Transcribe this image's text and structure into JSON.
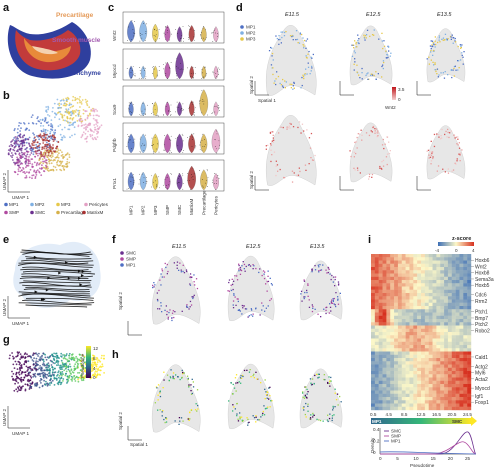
{
  "panels": {
    "a": {
      "letter": "a",
      "labels": {
        "precartilage": "Precartilage",
        "smooth_muscle": "Smooth muscle",
        "mesenchyme": "Mesenchyme"
      }
    },
    "b": {
      "letter": "b",
      "xlabel": "UMAP 1",
      "ylabel": "UMAP 2",
      "legend": [
        {
          "name": "MP1",
          "color": "#4e6fc4"
        },
        {
          "name": "MP2",
          "color": "#7fb0e3"
        },
        {
          "name": "MP3",
          "color": "#e6c84a"
        },
        {
          "name": "Pericytes",
          "color": "#e3a0c4"
        },
        {
          "name": "SMP",
          "color": "#b04aa0"
        },
        {
          "name": "SMC",
          "color": "#6b2f8f"
        },
        {
          "name": "Precartilage",
          "color": "#d6b14a"
        },
        {
          "name": "MatrixM",
          "color": "#a83232"
        }
      ]
    },
    "c": {
      "letter": "c",
      "genes": [
        "Wnt2",
        "Myocd",
        "Sox9",
        "Pdgfrb",
        "Prrx1"
      ],
      "categories": [
        "MP1",
        "MP2",
        "MP3",
        "SMP",
        "SMC",
        "MatrixM",
        "Precartilage",
        "Pericytes"
      ],
      "colors": [
        "#4e6fc4",
        "#7fb0e3",
        "#e6c84a",
        "#b04aa0",
        "#6b2f8f",
        "#a83232",
        "#d6b14a",
        "#e3a0c4"
      ]
    },
    "d": {
      "letter": "d",
      "stages": [
        "E11.5",
        "E12.5",
        "E13.5"
      ],
      "legend": [
        {
          "name": "MP1",
          "color": "#4e6fc4"
        },
        {
          "name": "MP2",
          "color": "#7fb0e3"
        },
        {
          "name": "MP3",
          "color": "#e6c84a"
        }
      ],
      "colorbar": {
        "gene": "Wnt2",
        "max": "3.5",
        "min": "0"
      },
      "xlabel": "Spatial 1",
      "ylabel": "Spatial 2"
    },
    "e": {
      "letter": "e",
      "xlabel": "UMAP 1",
      "ylabel": "UMAP 2"
    },
    "f": {
      "letter": "f",
      "stages": [
        "E11.5",
        "E12.5",
        "E13.5"
      ],
      "legend": [
        {
          "name": "SMC",
          "color": "#6b2f8f"
        },
        {
          "name": "SMP",
          "color": "#b04aa0"
        },
        {
          "name": "MP1",
          "color": "#4e6fc4"
        }
      ],
      "ylabel": "Spatial 2"
    },
    "g": {
      "letter": "g",
      "xlabel": "UMAP 1",
      "ylabel": "UMAP 2",
      "colorbar": {
        "title": "Pseudotime",
        "ticks": [
          "12",
          "8",
          "4",
          "0"
        ]
      }
    },
    "h": {
      "letter": "h",
      "xlabel": "Spatial 1",
      "ylabel": "Spatial 2"
    },
    "i": {
      "letter": "i",
      "zscore": {
        "title": "z-score",
        "ticks": [
          "-4",
          "0",
          "4"
        ]
      },
      "genes": [
        "Hoxb6",
        "Wnt2",
        "Hoxb8",
        "Sema3a",
        "Hoxb5",
        "Cdc6",
        "Rrm2",
        "Ptch1",
        "Bmp7",
        "Ptch2",
        "Robo2",
        "Cald1",
        "Actg2",
        "Myl6",
        "Acta2",
        "Myocd",
        "Igf1",
        "Foxp1"
      ],
      "pt_ticks": [
        "0.5",
        "4.5",
        "8.5",
        "12.5",
        "16.5",
        "20.5",
        "24.5"
      ],
      "bar_labels": {
        "left": "MP1",
        "right": "SMC"
      },
      "density": {
        "ylabel": "Density",
        "xlabel": "Pseudotime",
        "yticks": [
          "0.4",
          "0.2",
          "0"
        ],
        "xticks": [
          "0",
          "5",
          "10",
          "15",
          "20",
          "25"
        ],
        "legend": [
          {
            "name": "SMC",
            "color": "#6b2f8f"
          },
          {
            "name": "SMP",
            "color": "#b04aa0"
          },
          {
            "name": "MP1",
            "color": "#4e6fc4"
          }
        ]
      }
    }
  }
}
